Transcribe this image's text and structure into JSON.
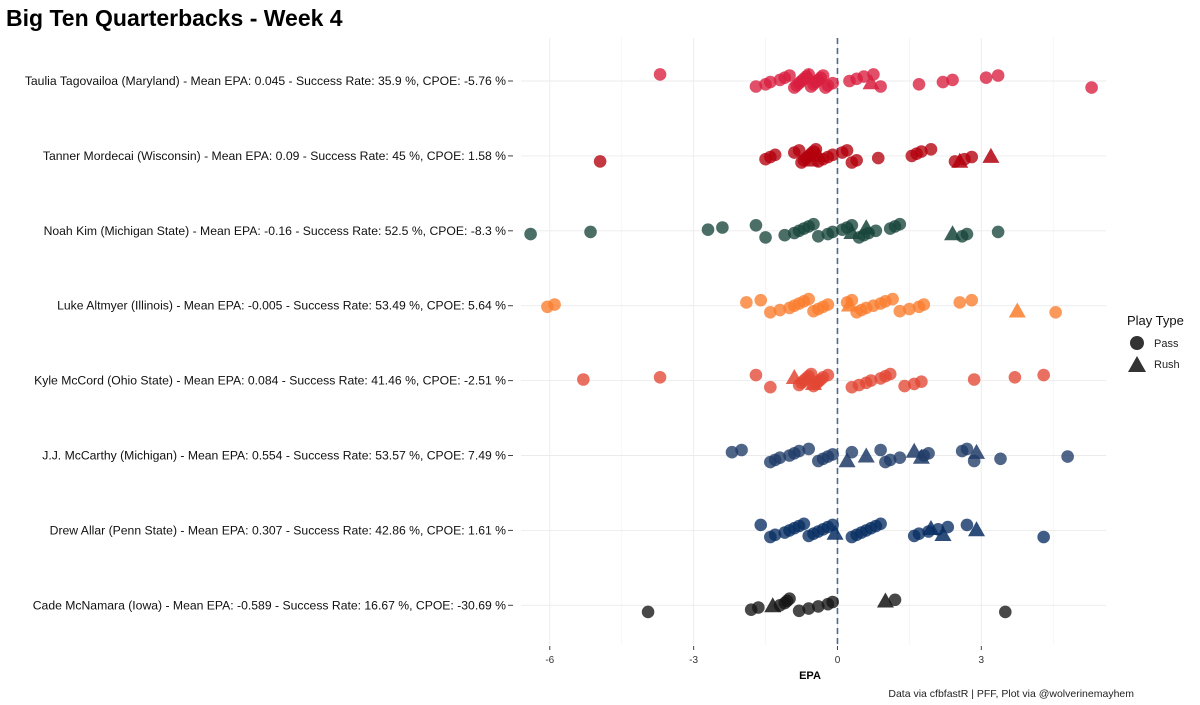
{
  "chart_data": {
    "type": "scatter",
    "title": "Big Ten Quarterbacks - Week 4",
    "xlabel": "EPA",
    "ylabel": "",
    "xlim": [
      -6.6,
      5.6
    ],
    "xticks": [
      -6,
      -3,
      0,
      3
    ],
    "reference_line_x": 0,
    "grid": true,
    "legend": {
      "title": "Play Type",
      "position": "right",
      "entries": [
        {
          "label": "Pass",
          "shape": "circle"
        },
        {
          "label": "Rush",
          "shape": "triangle"
        }
      ]
    },
    "caption": "Data via cfbfastR | PFF, Plot via @wolverinemayhem",
    "series": [
      {
        "name": "Taulia Tagovailoa (Maryland) - Mean EPA: 0.045 - Success Rate: 35.9 %, CPOE: -5.76 %",
        "color": "#d81e3f",
        "pass": [
          -3.7,
          -1.7,
          -1.5,
          -1.4,
          -1.2,
          -1.1,
          -1.0,
          -0.9,
          -0.85,
          -0.8,
          -0.75,
          -0.7,
          -0.65,
          -0.6,
          -0.55,
          -0.5,
          -0.45,
          -0.4,
          -0.35,
          -0.3,
          -0.25,
          -0.2,
          -0.1,
          0.25,
          0.4,
          0.55,
          0.75,
          0.9,
          1.7,
          2.2,
          2.4,
          3.1,
          3.35,
          5.3
        ],
        "rush": [
          -0.6,
          0.7
        ]
      },
      {
        "name": "Tanner Mordecai (Wisconsin) - Mean EPA: 0.09 - Success Rate: 45 %, CPOE: 1.58 %",
        "color": "#b3000d",
        "pass": [
          -4.95,
          -1.5,
          -1.4,
          -1.3,
          -0.9,
          -0.8,
          -0.75,
          -0.7,
          -0.65,
          -0.6,
          -0.55,
          -0.5,
          -0.45,
          -0.4,
          -0.3,
          -0.2,
          -0.1,
          0.1,
          0.2,
          0.3,
          0.4,
          0.85,
          1.55,
          1.65,
          1.75,
          1.95,
          2.45,
          2.65,
          2.8
        ],
        "rush": [
          -0.55,
          -0.4,
          2.55,
          3.2
        ]
      },
      {
        "name": "Noah Kim (Michigan State) - Mean EPA: -0.16 - Success Rate: 52.5 %, CPOE: -8.3 %",
        "color": "#18453b",
        "pass": [
          -6.4,
          -5.15,
          -2.7,
          -2.4,
          -1.7,
          -1.5,
          -1.1,
          -0.9,
          -0.8,
          -0.7,
          -0.6,
          -0.5,
          -0.4,
          -0.2,
          -0.1,
          0.1,
          0.2,
          0.3,
          0.45,
          0.55,
          0.65,
          0.8,
          1.1,
          1.2,
          1.3,
          2.6,
          2.7,
          3.35
        ],
        "rush": [
          0.3,
          0.6,
          2.4
        ]
      },
      {
        "name": "Luke Altmyer (Illinois) - Mean EPA: -0.005 - Success Rate: 53.49 %, CPOE: 5.64 %",
        "color": "#fa7c2d",
        "pass": [
          -6.05,
          -5.9,
          -1.9,
          -1.6,
          -1.4,
          -1.2,
          -1.0,
          -0.9,
          -0.8,
          -0.7,
          -0.6,
          -0.5,
          -0.4,
          -0.3,
          -0.2,
          0.2,
          0.3,
          0.4,
          0.5,
          0.6,
          0.75,
          0.9,
          1.0,
          1.15,
          1.3,
          1.5,
          1.7,
          1.8,
          2.55,
          2.8,
          4.55
        ],
        "rush": [
          0.25,
          3.75
        ]
      },
      {
        "name": "Kyle McCord (Ohio State) - Mean EPA: 0.084 - Success Rate: 41.46 %, CPOE: -2.51 %",
        "color": "#e34733",
        "pass": [
          -5.3,
          -3.7,
          -1.7,
          -1.4,
          -0.8,
          -0.75,
          -0.7,
          -0.65,
          -0.6,
          -0.55,
          -0.5,
          -0.45,
          -0.4,
          -0.35,
          -0.3,
          -0.2,
          0.3,
          0.45,
          0.6,
          0.7,
          0.9,
          1.0,
          1.1,
          1.4,
          1.6,
          1.75,
          2.85,
          3.7,
          4.3
        ],
        "rush": [
          -0.9,
          -0.5
        ]
      },
      {
        "name": "J.J. McCarthy (Michigan) - Mean EPA: 0.554 - Success Rate: 53.57 %, CPOE: 7.49 %",
        "color": "#1f3b66",
        "pass": [
          -2.2,
          -2.0,
          -1.4,
          -1.3,
          -1.2,
          -1.0,
          -0.9,
          -0.8,
          -0.6,
          -0.4,
          -0.3,
          -0.2,
          -0.1,
          0.3,
          0.9,
          1.0,
          1.1,
          1.3,
          1.8,
          1.9,
          2.6,
          2.7,
          2.85,
          3.4,
          4.8
        ],
        "rush": [
          0.2,
          0.6,
          1.6,
          1.75,
          2.9
        ]
      },
      {
        "name": "Drew Allar (Penn State) - Mean EPA: 0.307 - Success Rate: 42.86 %, CPOE: 1.61 %",
        "color": "#082e63",
        "pass": [
          -1.6,
          -1.4,
          -1.3,
          -1.1,
          -1.0,
          -0.9,
          -0.8,
          -0.7,
          -0.6,
          -0.5,
          -0.4,
          -0.3,
          -0.2,
          -0.1,
          0.3,
          0.4,
          0.5,
          0.6,
          0.7,
          0.8,
          0.9,
          1.6,
          1.7,
          1.9,
          2.1,
          2.3,
          2.7,
          4.3
        ],
        "rush": [
          -0.05,
          1.95,
          2.2,
          2.9
        ]
      },
      {
        "name": "Cade McNamara (Iowa) - Mean EPA: -0.589 - Success Rate: 16.67 %, CPOE: -30.69 %",
        "color": "#141414",
        "pass": [
          -3.95,
          -1.8,
          -1.65,
          -1.2,
          -1.1,
          -1.05,
          -1.0,
          -0.8,
          -0.6,
          -0.4,
          -0.2,
          -0.1,
          1.2,
          3.5
        ],
        "rush": [
          -1.35,
          1.0
        ]
      }
    ]
  }
}
